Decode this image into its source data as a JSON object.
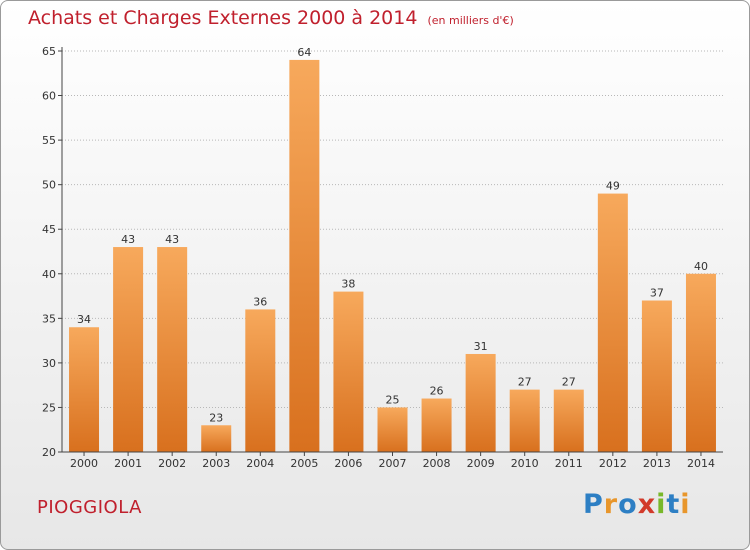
{
  "header": {
    "title": "Achats et Charges Externes 2000 à 2014",
    "unit": "(en milliers d'€)"
  },
  "footer": {
    "commune": "PIOGGIOLA",
    "logo": "Proxiti"
  },
  "colors": {
    "title": "#c0202d",
    "bar_light": "#f7a95c",
    "bar_dark": "#d8701e",
    "axis": "#444444",
    "grid": "#b8b8b8"
  },
  "chart_data": {
    "type": "bar",
    "title": "Achats et Charges Externes 2000 à 2014",
    "subtitle": "(en milliers d'€)",
    "categories": [
      "2000",
      "2001",
      "2002",
      "2003",
      "2004",
      "2005",
      "2006",
      "2007",
      "2008",
      "2009",
      "2010",
      "2011",
      "2012",
      "2013",
      "2014"
    ],
    "values": [
      34,
      43,
      43,
      23,
      36,
      64,
      38,
      25,
      26,
      31,
      27,
      27,
      49,
      37,
      40
    ],
    "ylim": [
      20,
      65
    ],
    "yticks": [
      20,
      25,
      30,
      35,
      40,
      45,
      50,
      55,
      60,
      65
    ],
    "grid": true,
    "data_labels": true
  }
}
